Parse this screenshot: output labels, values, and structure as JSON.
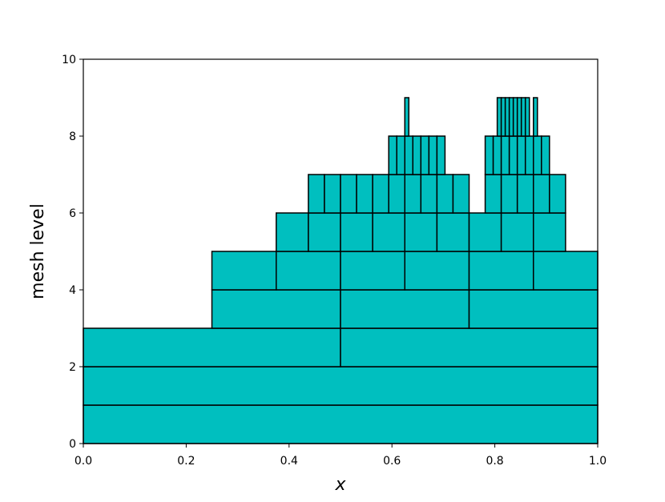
{
  "chart_data": {
    "type": "mesh",
    "xlabel": "x",
    "ylabel": "mesh level",
    "color": "#00bfbf",
    "edgecolor": "#000000",
    "xlim": [
      0,
      1
    ],
    "ylim": [
      0,
      10
    ],
    "xticks": [
      {
        "value": 0,
        "label": "0.0"
      },
      {
        "value": 0.2,
        "label": "0.2"
      },
      {
        "value": 0.4,
        "label": "0.4"
      },
      {
        "value": 0.6,
        "label": "0.6"
      },
      {
        "value": 0.8,
        "label": "0.8"
      },
      {
        "value": 1,
        "label": "1.0"
      }
    ],
    "yticks": [
      0,
      2,
      4,
      6,
      8,
      10
    ],
    "levels": [
      {
        "level": 0,
        "cells": [
          [
            0,
            1
          ]
        ]
      },
      {
        "level": 1,
        "cells": [
          [
            0,
            1
          ]
        ]
      },
      {
        "level": 2,
        "cells": [
          [
            0,
            0.5
          ],
          [
            0.5,
            1
          ]
        ]
      },
      {
        "level": 3,
        "cells": [
          [
            0.25,
            0.5
          ],
          [
            0.5,
            0.75
          ],
          [
            0.75,
            1
          ]
        ]
      },
      {
        "level": 4,
        "cells": [
          [
            0.25,
            0.375
          ],
          [
            0.375,
            0.5
          ],
          [
            0.5,
            0.625
          ],
          [
            0.625,
            0.75
          ],
          [
            0.75,
            0.875
          ],
          [
            0.875,
            1
          ]
        ]
      },
      {
        "level": 5,
        "cells": [
          [
            0.375,
            0.4375
          ],
          [
            0.4375,
            0.5
          ],
          [
            0.5,
            0.5625
          ],
          [
            0.5625,
            0.625
          ],
          [
            0.625,
            0.6875
          ],
          [
            0.6875,
            0.75
          ],
          [
            0.75,
            0.8125
          ],
          [
            0.8125,
            0.875
          ],
          [
            0.875,
            0.9375
          ]
        ]
      },
      {
        "level": 6,
        "cells": [
          [
            0.4375,
            0.46875
          ],
          [
            0.46875,
            0.5
          ],
          [
            0.5,
            0.53125
          ],
          [
            0.53125,
            0.5625
          ],
          [
            0.5625,
            0.59375
          ],
          [
            0.59375,
            0.625
          ],
          [
            0.625,
            0.65625
          ],
          [
            0.65625,
            0.6875
          ],
          [
            0.6875,
            0.71875
          ],
          [
            0.71875,
            0.75
          ],
          [
            0.78125,
            0.8125
          ],
          [
            0.8125,
            0.84375
          ],
          [
            0.84375,
            0.875
          ],
          [
            0.875,
            0.90625
          ],
          [
            0.90625,
            0.9375
          ]
        ]
      },
      {
        "level": 7,
        "cells": [
          [
            0.59375,
            0.609375
          ],
          [
            0.609375,
            0.625
          ],
          [
            0.625,
            0.640625
          ],
          [
            0.640625,
            0.65625
          ],
          [
            0.65625,
            0.671875
          ],
          [
            0.671875,
            0.6875
          ],
          [
            0.6875,
            0.703125
          ],
          [
            0.78125,
            0.796875
          ],
          [
            0.796875,
            0.8125
          ],
          [
            0.8125,
            0.828125
          ],
          [
            0.828125,
            0.84375
          ],
          [
            0.84375,
            0.859375
          ],
          [
            0.859375,
            0.875
          ],
          [
            0.875,
            0.890625
          ],
          [
            0.890625,
            0.90625
          ]
        ]
      },
      {
        "level": 8,
        "cells": [
          [
            0.625,
            0.6328125
          ],
          [
            0.8046875,
            0.8125
          ],
          [
            0.8125,
            0.8203125
          ],
          [
            0.8203125,
            0.828125
          ],
          [
            0.828125,
            0.8359375
          ],
          [
            0.8359375,
            0.84375
          ],
          [
            0.84375,
            0.8515625
          ],
          [
            0.8515625,
            0.859375
          ],
          [
            0.859375,
            0.8671875
          ],
          [
            0.875,
            0.8828125
          ]
        ]
      }
    ]
  }
}
